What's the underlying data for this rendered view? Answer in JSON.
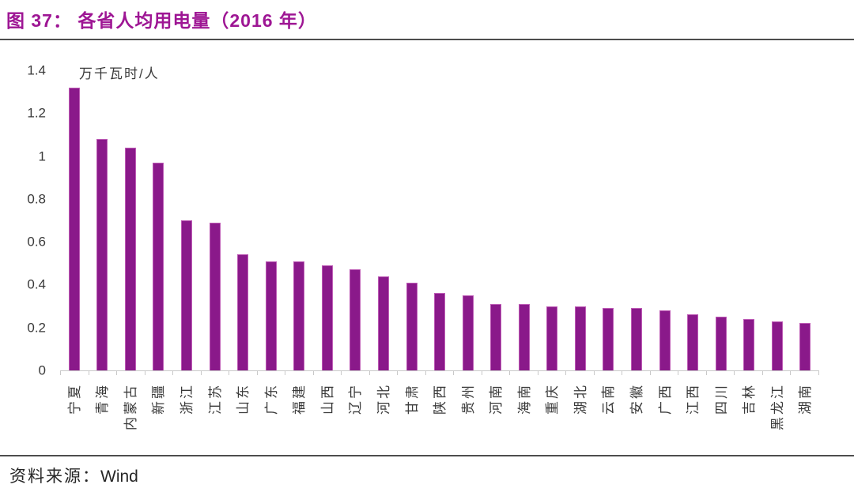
{
  "header": {
    "title": "图 37： 各省人均用电量（2016 年）"
  },
  "chart_data": {
    "type": "bar",
    "figure_label": "图 37",
    "title": "各省人均用电量（2016 年）",
    "unit_label": "万千瓦时/人",
    "categories": [
      "宁夏",
      "青海",
      "内蒙古",
      "新疆",
      "浙江",
      "江苏",
      "山东",
      "广东",
      "福建",
      "山西",
      "辽宁",
      "河北",
      "甘肃",
      "陕西",
      "贵州",
      "河南",
      "海南",
      "重庆",
      "湖北",
      "云南",
      "安徽",
      "广西",
      "江西",
      "四川",
      "吉林",
      "黑龙江",
      "湖南"
    ],
    "values": [
      1.32,
      1.08,
      1.04,
      0.97,
      0.7,
      0.69,
      0.54,
      0.51,
      0.51,
      0.49,
      0.47,
      0.44,
      0.41,
      0.36,
      0.35,
      0.31,
      0.31,
      0.3,
      0.3,
      0.29,
      0.29,
      0.28,
      0.26,
      0.25,
      0.24,
      0.23,
      0.22
    ],
    "ylim": [
      0,
      1.4
    ],
    "ytick_labels": [
      "1.4",
      "1.2",
      "1",
      "0.8",
      "0.6",
      "0.4",
      "0.2",
      "0"
    ],
    "grid": false,
    "legend": false,
    "x_label_rotation": "vertical-bottom-up"
  },
  "footer": {
    "source_label": "资料来源：",
    "source_value": "Wind"
  },
  "colors": {
    "title": "#9e1694",
    "bar_fill": "#8a198a",
    "bar_edge": "#bd5bb5",
    "divider": "#4d4d4d",
    "axis_line": "#c9c9c9",
    "text": "#3a3a3a"
  }
}
